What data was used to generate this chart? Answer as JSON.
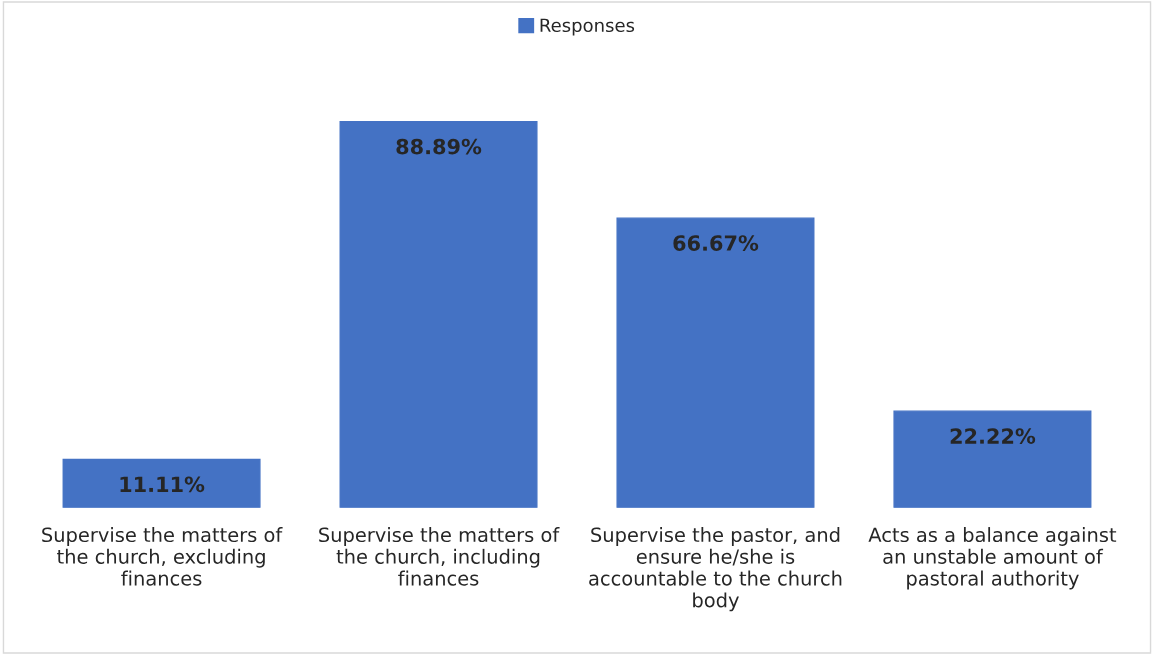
{
  "chart_data": {
    "type": "bar",
    "categories": [
      "Supervise the matters of the church, excluding finances",
      "Supervise the matters of the church, including finances",
      "Supervise the pastor, and ensure he/she is accountable to the church body",
      "Acts as a balance against an unstable amount of pastoral authority"
    ],
    "series": [
      {
        "name": "Responses",
        "color": "#4472c4",
        "values": [
          11.11,
          88.89,
          66.67,
          22.22
        ],
        "value_labels": [
          "11.11%",
          "88.89%",
          "66.67%",
          "22.22%"
        ]
      }
    ],
    "legend": "top",
    "grid": false
  }
}
